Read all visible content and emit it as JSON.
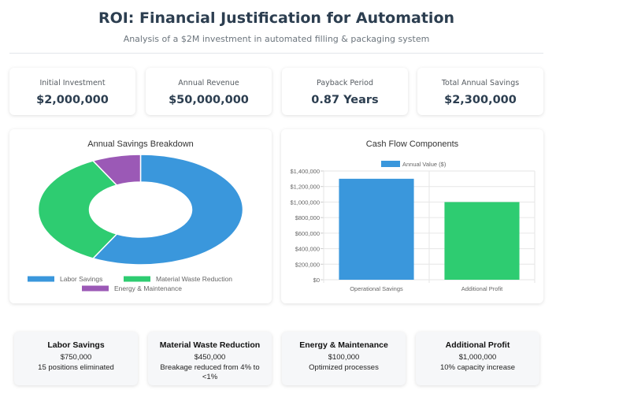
{
  "header": {
    "title": "ROI: Financial Justification for Automation",
    "subtitle": "Analysis of a $2M investment in automated filling & packaging system"
  },
  "kpis": [
    {
      "label": "Initial Investment",
      "value": "$2,000,000"
    },
    {
      "label": "Annual Revenue",
      "value": "$50,000,000"
    },
    {
      "label": "Payback Period",
      "value": "0.87 Years"
    },
    {
      "label": "Total Annual Savings",
      "value": "$2,300,000"
    }
  ],
  "colors": {
    "blue": "#3a97dc",
    "green": "#2ecc71",
    "purple": "#9b59b6"
  },
  "chart_data": [
    {
      "type": "pie",
      "variant": "doughnut",
      "title": "Annual Savings Breakdown",
      "categories": [
        "Labor Savings",
        "Material Waste Reduction",
        "Energy & Maintenance"
      ],
      "values": [
        750000,
        450000,
        100000
      ],
      "colors": [
        "#3a97dc",
        "#2ecc71",
        "#9b59b6"
      ],
      "legend_position": "bottom"
    },
    {
      "type": "bar",
      "title": "Cash Flow Components",
      "categories": [
        "Operational Savings",
        "Additional Profit"
      ],
      "series": [
        {
          "name": "Annual Value ($)",
          "values": [
            1300000,
            1000000
          ],
          "colors": [
            "#3a97dc",
            "#2ecc71"
          ]
        }
      ],
      "ylim": [
        0,
        1400000
      ],
      "yticks": [
        0,
        200000,
        400000,
        600000,
        800000,
        1000000,
        1200000,
        1400000
      ],
      "ytick_labels": [
        "$0",
        "$200,000",
        "$400,000",
        "$600,000",
        "$800,000",
        "$1,000,000",
        "$1,200,000",
        "$1,400,000"
      ],
      "grid": true,
      "legend_position": "top"
    }
  ],
  "details": [
    {
      "title": "Labor Savings",
      "value": "$750,000",
      "desc": "15 positions eliminated"
    },
    {
      "title": "Material Waste Reduction",
      "value": "$450,000",
      "desc": "Breakage reduced from 4% to <1%"
    },
    {
      "title": "Energy & Maintenance",
      "value": "$100,000",
      "desc": "Optimized processes"
    },
    {
      "title": "Additional Profit",
      "value": "$1,000,000",
      "desc": "10% capacity increase"
    }
  ]
}
